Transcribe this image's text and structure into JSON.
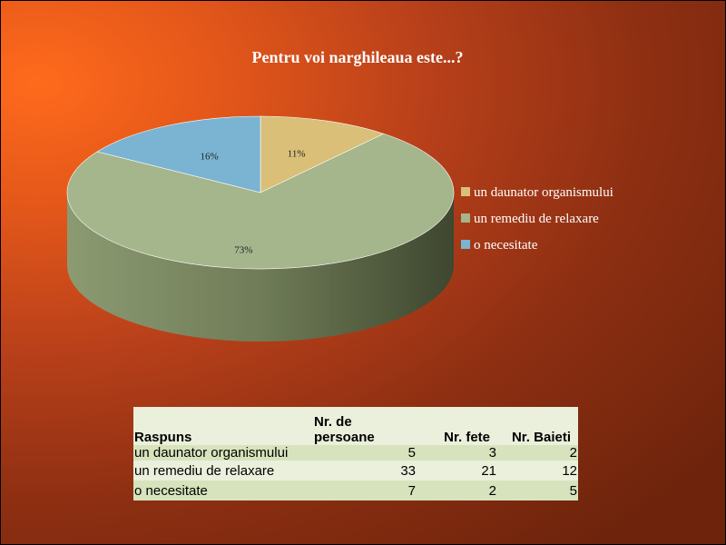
{
  "chart_data": {
    "type": "pie",
    "title": "Pentru voi narghileaua este...?",
    "categories": [
      "un daunator organismului",
      "un remediu de relaxare",
      "o necesitate"
    ],
    "values": [
      11,
      73,
      16
    ],
    "labels": [
      "11%",
      "73%",
      "16%"
    ],
    "colors": [
      "#d9bf78",
      "#a5b58c",
      "#7ab4d2"
    ],
    "legend_position": "right",
    "style": "3d"
  },
  "table": {
    "headers": [
      "Raspuns",
      "Nr. de persoane",
      "Nr. fete",
      "Nr. Baieti"
    ],
    "rows": [
      [
        "un daunator organismului",
        "5",
        "3",
        "2"
      ],
      [
        "un remediu de relaxare",
        "33",
        "21",
        "12"
      ],
      [
        "o necesitate",
        "7",
        "2",
        "5"
      ]
    ]
  }
}
